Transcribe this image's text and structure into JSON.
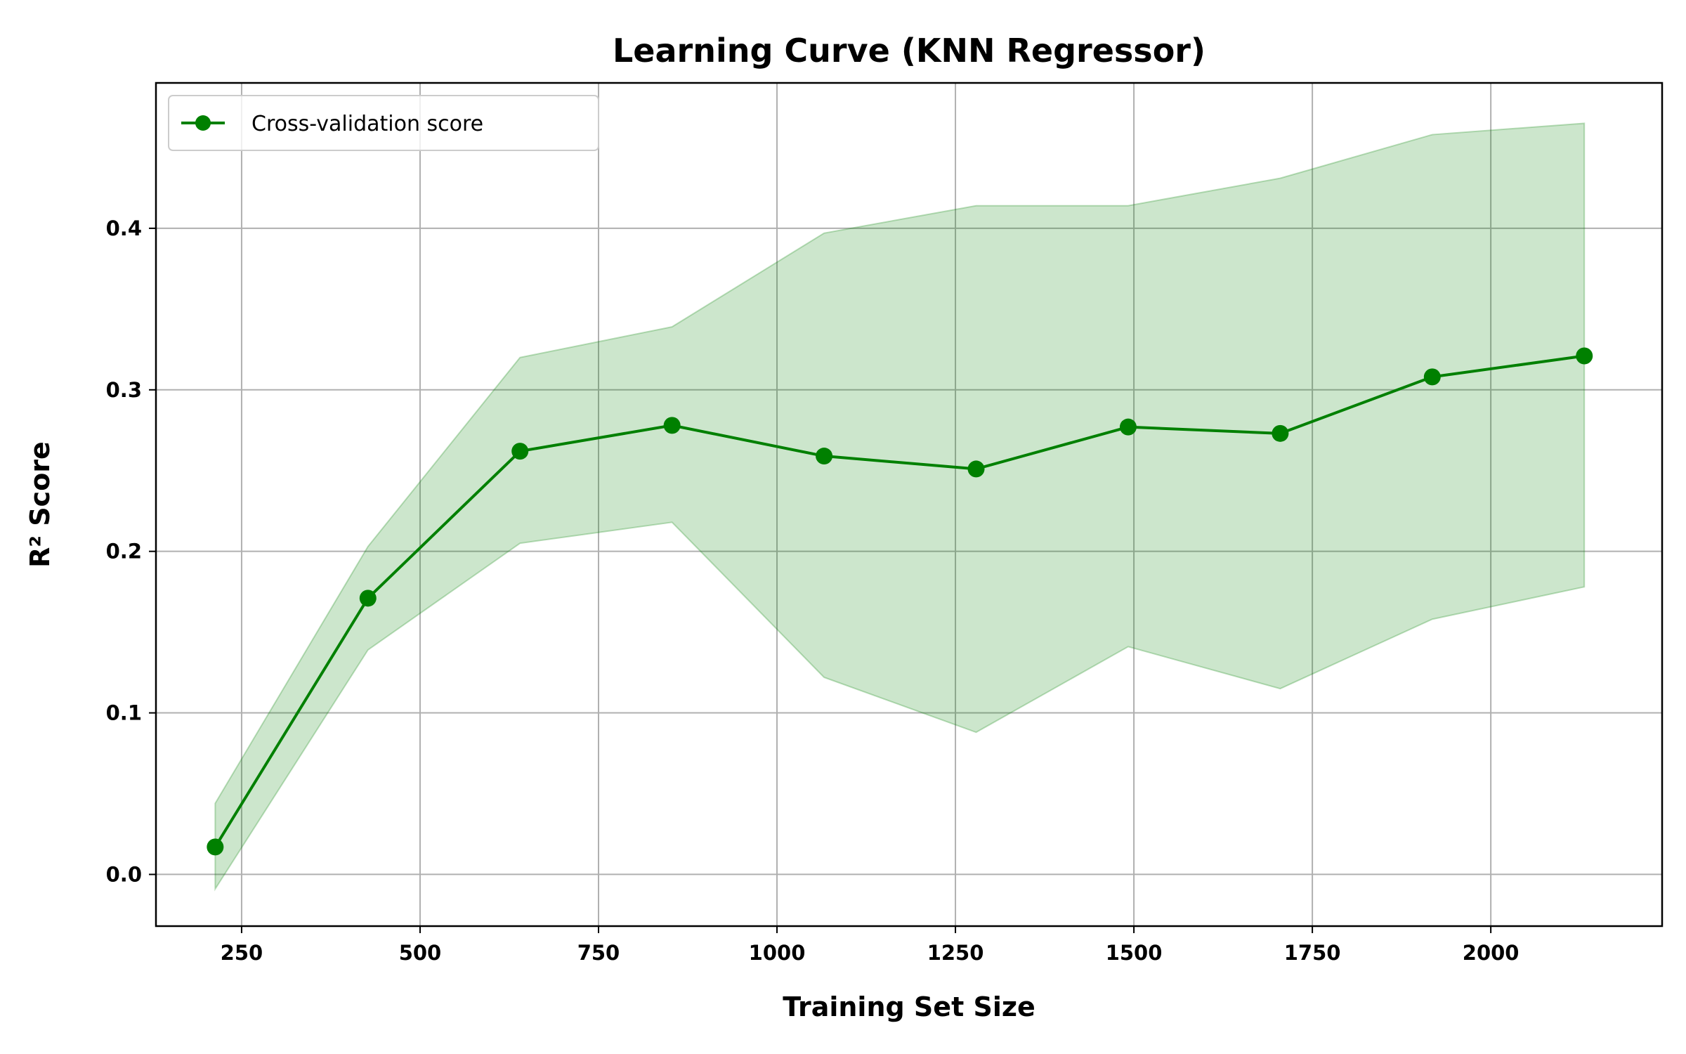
{
  "chart_data": {
    "type": "line",
    "title": "Learning Curve (KNN Regressor)",
    "xlabel": "Training Set Size",
    "ylabel": "R² Score",
    "xlim": [
      130,
      2240
    ],
    "ylim": [
      -0.032,
      0.49
    ],
    "xticks": [
      250,
      500,
      750,
      1000,
      1250,
      1500,
      1750,
      2000
    ],
    "xtick_labels": [
      "250",
      "500",
      "750",
      "1000",
      "1250",
      "1500",
      "1750",
      "2000"
    ],
    "yticks": [
      0.0,
      0.1,
      0.2,
      0.3,
      0.4
    ],
    "ytick_labels": [
      "0.0",
      "0.1",
      "0.2",
      "0.3",
      "0.4"
    ],
    "grid": true,
    "legend_position": "top-left",
    "series": [
      {
        "name": "Cross-validation score",
        "color": "#008000",
        "marker": "circle",
        "x": [
          213,
          427,
          640,
          853,
          1066,
          1279,
          1492,
          1705,
          1918,
          2131
        ],
        "y": [
          0.017,
          0.171,
          0.262,
          0.278,
          0.259,
          0.251,
          0.277,
          0.273,
          0.308,
          0.321
        ],
        "band": {
          "color": "#008000",
          "opacity": 0.2,
          "lower": [
            -0.009,
            0.139,
            0.205,
            0.218,
            0.122,
            0.088,
            0.141,
            0.115,
            0.158,
            0.178
          ],
          "upper": [
            0.044,
            0.203,
            0.32,
            0.339,
            0.397,
            0.414,
            0.414,
            0.431,
            0.458,
            0.465
          ]
        }
      }
    ]
  }
}
